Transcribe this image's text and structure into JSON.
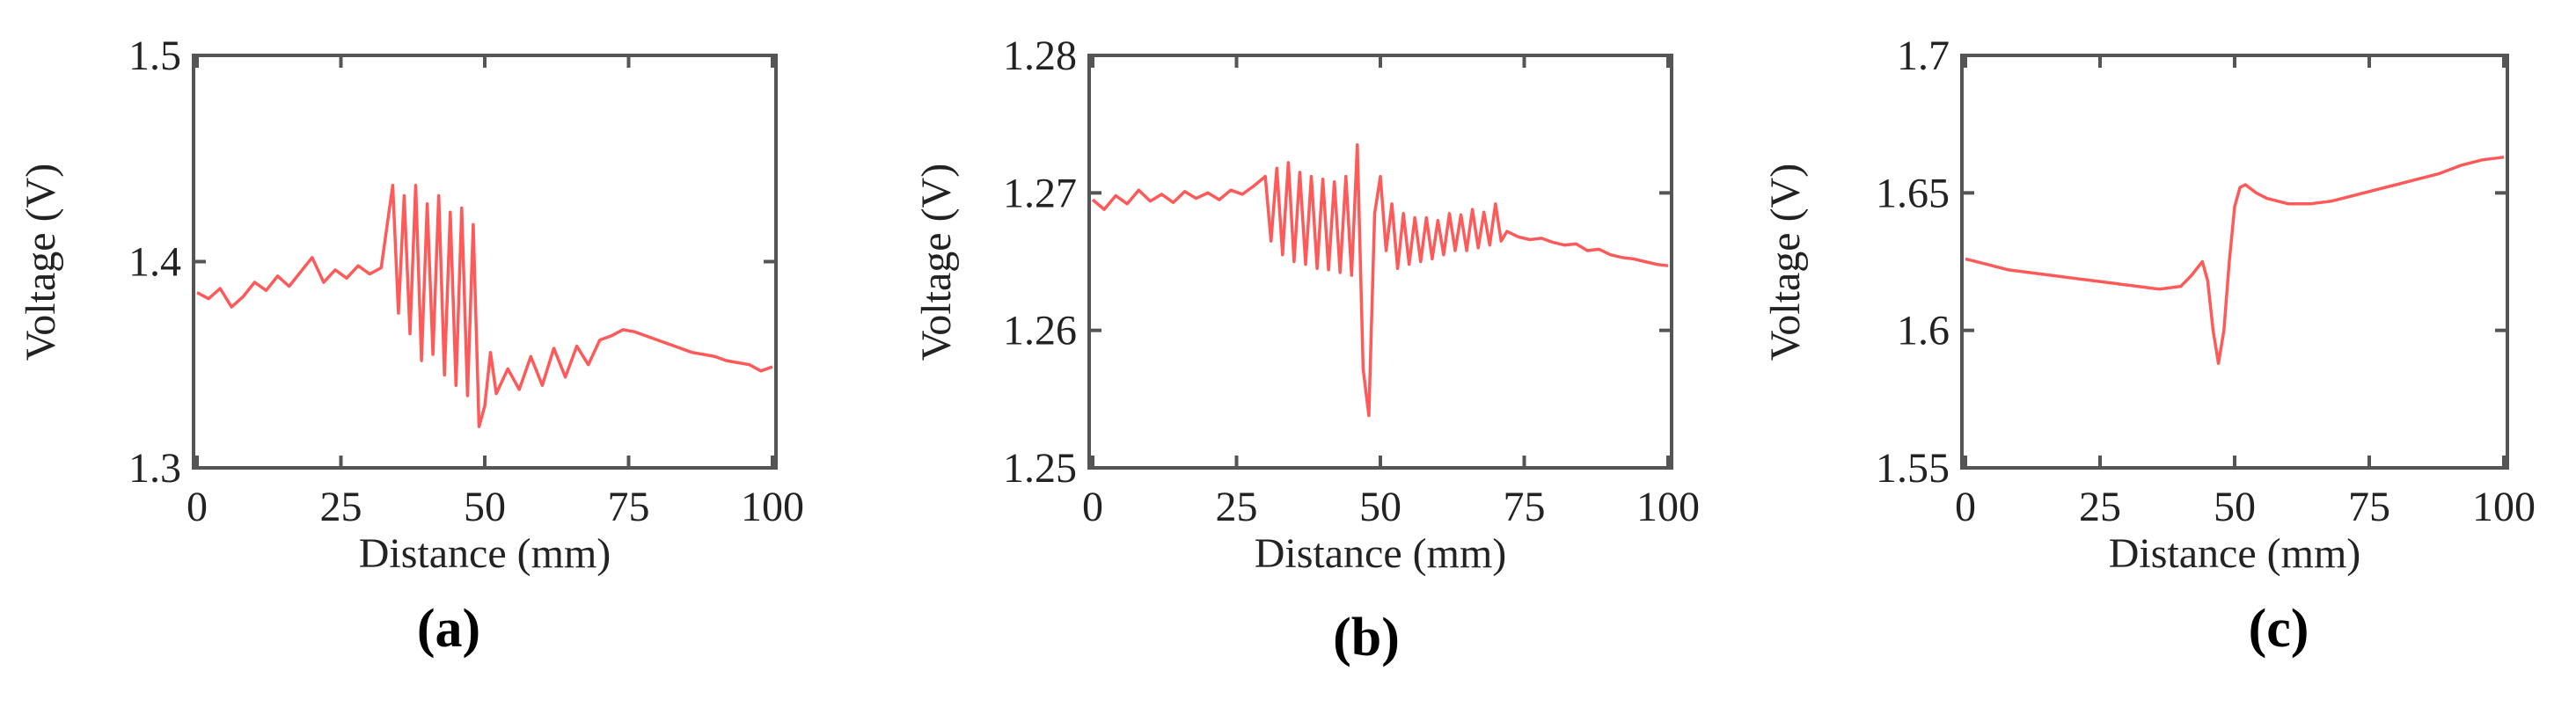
{
  "colors": {
    "series": "#ff5a5a",
    "axis": "#555555",
    "text": "#222222"
  },
  "chart_data": [
    {
      "type": "line",
      "panel_label": "(a)",
      "xlabel": "Distance (mm)",
      "ylabel": "Voltage (V)",
      "xlim": [
        0,
        100
      ],
      "ylim": [
        1.3,
        1.5
      ],
      "xticks": [
        0,
        25,
        50,
        75,
        100
      ],
      "yticks": [
        1.3,
        1.4,
        1.5
      ],
      "xtick_labels": [
        "0",
        "25",
        "50",
        "75",
        "100"
      ],
      "ytick_labels": [
        "1.3",
        "1.4",
        "1.5"
      ],
      "series": [
        {
          "x": [
            0,
            2,
            4,
            6,
            8,
            10,
            12,
            14,
            16,
            18,
            20,
            22,
            24,
            26,
            28,
            30,
            32,
            34,
            35,
            36,
            37,
            38,
            39,
            40,
            41,
            42,
            43,
            44,
            45,
            46,
            47,
            48,
            49,
            50,
            51,
            52,
            54,
            56,
            58,
            60,
            62,
            64,
            66,
            68,
            70,
            72,
            74,
            76,
            78,
            80,
            82,
            84,
            86,
            88,
            90,
            92,
            94,
            96,
            98,
            100
          ],
          "y": [
            1.385,
            1.382,
            1.387,
            1.378,
            1.383,
            1.39,
            1.386,
            1.393,
            1.388,
            1.395,
            1.402,
            1.39,
            1.396,
            1.392,
            1.398,
            1.394,
            1.397,
            1.437,
            1.375,
            1.432,
            1.365,
            1.437,
            1.352,
            1.428,
            1.355,
            1.432,
            1.345,
            1.424,
            1.34,
            1.426,
            1.335,
            1.418,
            1.32,
            1.33,
            1.356,
            1.336,
            1.348,
            1.338,
            1.354,
            1.34,
            1.358,
            1.344,
            1.359,
            1.35,
            1.362,
            1.364,
            1.367,
            1.366,
            1.364,
            1.362,
            1.36,
            1.358,
            1.356,
            1.355,
            1.354,
            1.352,
            1.351,
            1.35,
            1.347,
            1.349
          ]
        }
      ]
    },
    {
      "type": "line",
      "panel_label": "(b)",
      "xlabel": "Distance (mm)",
      "ylabel": "Voltage (V)",
      "xlim": [
        0,
        100
      ],
      "ylim": [
        1.25,
        1.28
      ],
      "xticks": [
        0,
        25,
        50,
        75,
        100
      ],
      "yticks": [
        1.25,
        1.26,
        1.27,
        1.28
      ],
      "xtick_labels": [
        "0",
        "25",
        "50",
        "75",
        "100"
      ],
      "ytick_labels": [
        "1.25",
        "1.26",
        "1.27",
        "1.28"
      ],
      "series": [
        {
          "x": [
            0,
            2,
            4,
            6,
            8,
            10,
            12,
            14,
            16,
            18,
            20,
            22,
            24,
            26,
            28,
            30,
            31,
            32,
            33,
            34,
            35,
            36,
            37,
            38,
            39,
            40,
            41,
            42,
            43,
            44,
            45,
            46,
            47,
            48,
            49,
            50,
            51,
            52,
            53,
            54,
            55,
            56,
            57,
            58,
            59,
            60,
            61,
            62,
            63,
            64,
            65,
            66,
            67,
            68,
            69,
            70,
            71,
            72,
            74,
            76,
            78,
            80,
            82,
            84,
            86,
            88,
            90,
            92,
            94,
            96,
            98,
            100
          ],
          "y": [
            1.2695,
            1.2688,
            1.2698,
            1.2692,
            1.2702,
            1.2694,
            1.2699,
            1.2693,
            1.2701,
            1.2696,
            1.27,
            1.2695,
            1.2702,
            1.2699,
            1.2705,
            1.2712,
            1.2665,
            1.2718,
            1.2655,
            1.2722,
            1.265,
            1.2715,
            1.2648,
            1.2712,
            1.2645,
            1.271,
            1.2644,
            1.2708,
            1.2642,
            1.2712,
            1.264,
            1.2735,
            1.2572,
            1.2538,
            1.2685,
            1.2712,
            1.2658,
            1.2692,
            1.2645,
            1.2685,
            1.2648,
            1.2682,
            1.265,
            1.2682,
            1.2652,
            1.268,
            1.2655,
            1.2685,
            1.2658,
            1.2684,
            1.2658,
            1.2688,
            1.266,
            1.2686,
            1.2662,
            1.2692,
            1.2665,
            1.2672,
            1.2668,
            1.2666,
            1.2667,
            1.2664,
            1.2662,
            1.2663,
            1.2658,
            1.2659,
            1.2655,
            1.2653,
            1.2652,
            1.265,
            1.2648,
            1.2647
          ]
        }
      ]
    },
    {
      "type": "line",
      "panel_label": "(c)",
      "xlabel": "Distance (mm)",
      "ylabel": "Voltage (V)",
      "xlim": [
        0,
        100
      ],
      "ylim": [
        1.55,
        1.7
      ],
      "xticks": [
        0,
        25,
        50,
        75,
        100
      ],
      "yticks": [
        1.55,
        1.6,
        1.65,
        1.7
      ],
      "xtick_labels": [
        "0",
        "25",
        "50",
        "75",
        "100"
      ],
      "ytick_labels": [
        "1.55",
        "1.6",
        "1.65",
        "1.7"
      ],
      "series": [
        {
          "x": [
            0,
            4,
            8,
            12,
            16,
            20,
            24,
            28,
            32,
            36,
            40,
            42,
            44,
            45,
            46,
            47,
            48,
            49,
            50,
            51,
            52,
            54,
            56,
            58,
            60,
            64,
            68,
            72,
            76,
            80,
            84,
            88,
            92,
            96,
            100
          ],
          "y": [
            1.626,
            1.624,
            1.622,
            1.621,
            1.62,
            1.619,
            1.618,
            1.617,
            1.616,
            1.615,
            1.616,
            1.62,
            1.625,
            1.618,
            1.6,
            1.588,
            1.6,
            1.625,
            1.645,
            1.652,
            1.653,
            1.65,
            1.648,
            1.647,
            1.646,
            1.646,
            1.647,
            1.649,
            1.651,
            1.653,
            1.655,
            1.657,
            1.66,
            1.662,
            1.663
          ]
        }
      ]
    }
  ]
}
